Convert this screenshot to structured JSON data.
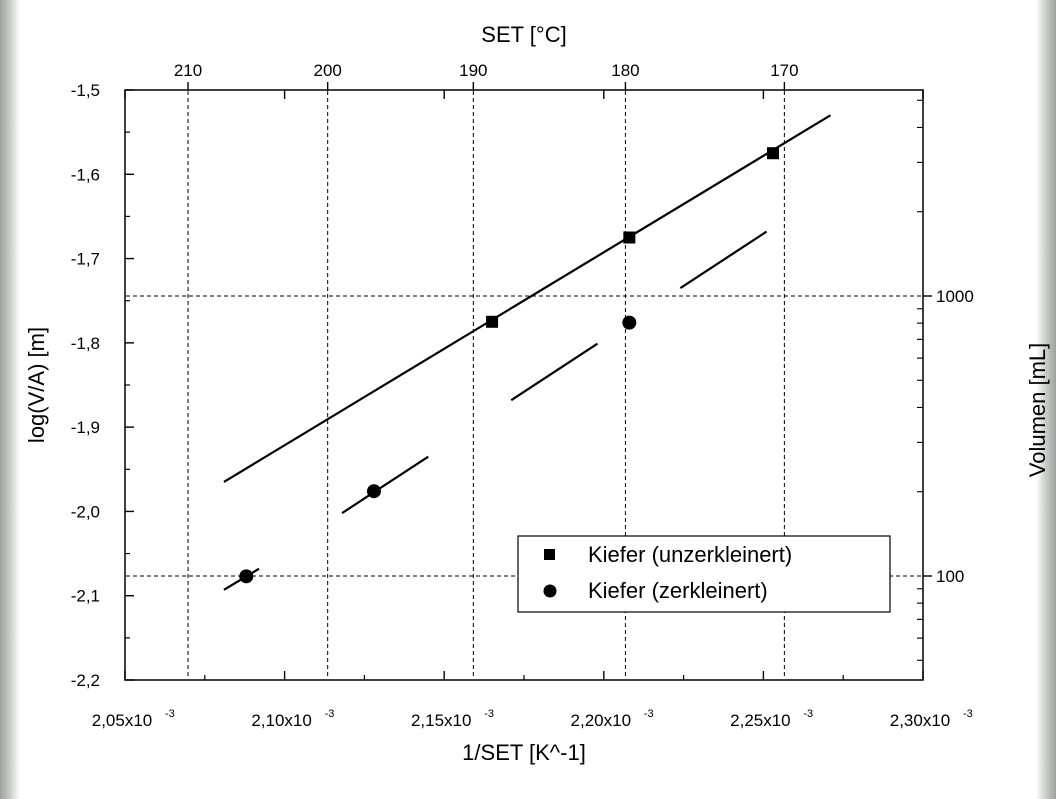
{
  "chart_data": {
    "type": "scatter",
    "title": "",
    "xlabel": "1/SET [K^-1]",
    "ylabel": "log(V/A) [m]",
    "x2label": "SET [°C]",
    "y2label": "Volumen [mL]",
    "xlim": [
      0.00205,
      0.0023
    ],
    "ylim": [
      -2.2,
      -1.5
    ],
    "grid": "dashed",
    "legend_position": "bottom-right",
    "x_ticks": [
      {
        "value": 0.00205,
        "mantissa": "2,05x10",
        "exp": "-3"
      },
      {
        "value": 0.0021,
        "mantissa": "2,10x10",
        "exp": "-3"
      },
      {
        "value": 0.00215,
        "mantissa": "2,15x10",
        "exp": "-3"
      },
      {
        "value": 0.0022,
        "mantissa": "2,20x10",
        "exp": "-3"
      },
      {
        "value": 0.00225,
        "mantissa": "2,25x10",
        "exp": "-3"
      },
      {
        "value": 0.0023,
        "mantissa": "2,30x10",
        "exp": "-3"
      }
    ],
    "y_ticks": [
      {
        "value": -1.5,
        "label": "-1,5"
      },
      {
        "value": -1.6,
        "label": "-1,6"
      },
      {
        "value": -1.7,
        "label": "-1,7"
      },
      {
        "value": -1.8,
        "label": "-1,8"
      },
      {
        "value": -1.9,
        "label": "-1,9"
      },
      {
        "value": -2.0,
        "label": "-2,0"
      },
      {
        "value": -2.1,
        "label": "-2,1"
      },
      {
        "value": -2.2,
        "label": "-2,2"
      }
    ],
    "top_ticks": [
      {
        "celsius": 210,
        "label": "210"
      },
      {
        "celsius": 200,
        "label": "200"
      },
      {
        "celsius": 190,
        "label": "190"
      },
      {
        "celsius": 180,
        "label": "180"
      },
      {
        "celsius": 170,
        "label": "170"
      }
    ],
    "right_ticks": [
      {
        "volume_ml": 1000,
        "label": "1000"
      },
      {
        "volume_ml": 100,
        "label": "100"
      }
    ],
    "series": [
      {
        "name": "Kiefer (unzerkleinert)",
        "marker": "square",
        "points": [
          [
            0.002165,
            -1.775
          ],
          [
            0.002208,
            -1.675
          ],
          [
            0.002253,
            -1.575
          ]
        ],
        "fit_lines": [
          [
            [
              0.002081,
              -1.965
            ],
            [
              0.002271,
              -1.53
            ]
          ]
        ]
      },
      {
        "name": "Kiefer (zerkleinert)",
        "marker": "circle",
        "points": [
          [
            0.002088,
            -2.077
          ],
          [
            0.002128,
            -1.976
          ],
          [
            0.002208,
            -1.776
          ]
        ],
        "fit_lines": [
          [
            [
              0.002081,
              -2.093
            ],
            [
              0.002092,
              -2.068
            ]
          ],
          [
            [
              0.002118,
              -2.002
            ],
            [
              0.002145,
              -1.935
            ]
          ],
          [
            [
              0.002171,
              -1.868
            ],
            [
              0.002198,
              -1.801
            ]
          ],
          [
            [
              0.002224,
              -1.735
            ],
            [
              0.002251,
              -1.668
            ]
          ]
        ]
      }
    ]
  }
}
